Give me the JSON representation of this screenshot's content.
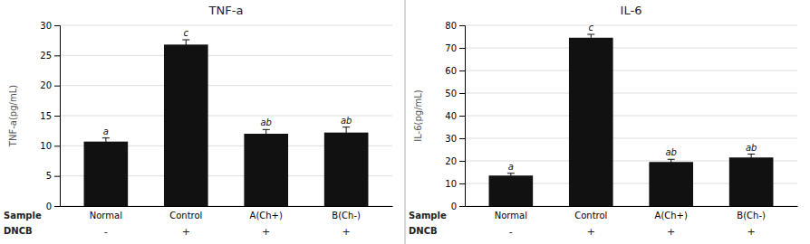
{
  "chart_data": [
    {
      "type": "bar",
      "title": "TNF-a",
      "ylabel": "TNF-a(pg/mL)",
      "categories": [
        "Normal",
        "Control",
        "A(Ch+)",
        "B(Ch-)"
      ],
      "dncb": [
        "-",
        "+",
        "+",
        "+"
      ],
      "row_labels": [
        "Sample",
        "DNCB"
      ],
      "values": [
        10.7,
        26.8,
        12.0,
        12.2
      ],
      "errors": [
        0.6,
        0.8,
        0.7,
        0.9
      ],
      "annotations": [
        "a",
        "c",
        "ab",
        "ab"
      ],
      "color": "#111111",
      "ylim": [
        0,
        30
      ],
      "yticks": [
        0,
        5,
        10,
        15,
        20,
        25,
        30
      ],
      "grid": true
    },
    {
      "type": "bar",
      "title": "IL-6",
      "ylabel": "IL-6(pg/mL)",
      "categories": [
        "Normal",
        "Control",
        "A(Ch+)",
        "B(Ch-)"
      ],
      "dncb": [
        "-",
        "+",
        "+",
        "+"
      ],
      "row_labels": [
        "Sample",
        "DNCB"
      ],
      "values": [
        13.5,
        74.5,
        19.5,
        21.5
      ],
      "errors": [
        1.0,
        1.5,
        1.2,
        1.5
      ],
      "annotations": [
        "a",
        "c",
        "ab",
        "ab"
      ],
      "color": "#111111",
      "ylim": [
        0,
        80
      ],
      "yticks": [
        0,
        10,
        20,
        30,
        40,
        50,
        60,
        70,
        80
      ],
      "grid": true
    }
  ]
}
